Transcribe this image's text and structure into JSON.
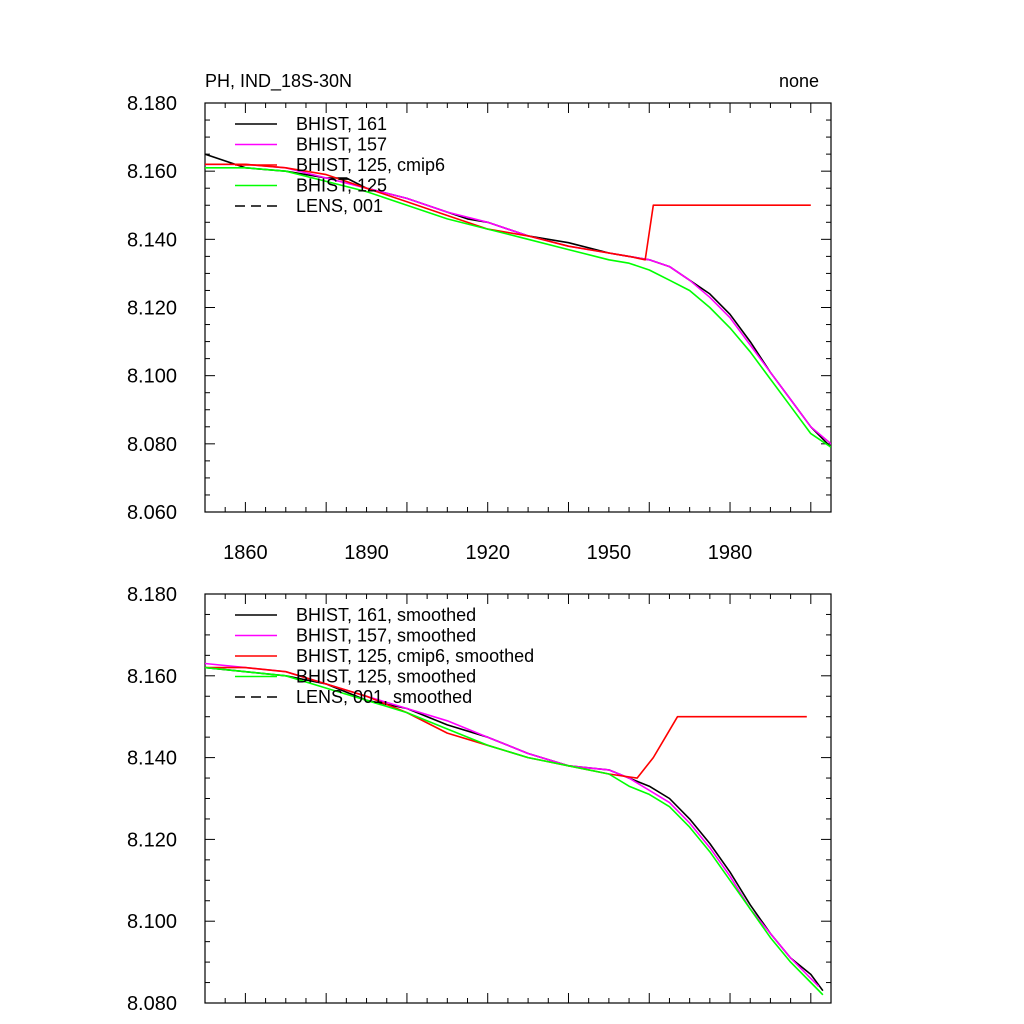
{
  "chart_data": [
    {
      "type": "line",
      "title": "PH, IND_18S-30N",
      "title_right": "none",
      "ylim": [
        8.06,
        8.18
      ],
      "yticks": [
        "8.060",
        "8.080",
        "8.100",
        "8.120",
        "8.140",
        "8.160",
        "8.180"
      ],
      "xlim": [
        1850,
        2005
      ],
      "xticks": [
        "1860",
        "1890",
        "1920",
        "1950",
        "1980"
      ],
      "legend_placement": "top-left",
      "series": [
        {
          "name": "BHIST, 161",
          "color": "#000000",
          "dash": "solid",
          "x": [
            1850,
            1860,
            1870,
            1880,
            1885,
            1890,
            1900,
            1910,
            1915,
            1920,
            1930,
            1940,
            1950,
            1955,
            1960,
            1965,
            1970,
            1975,
            1980,
            1985,
            1990,
            1995,
            2000,
            2005
          ],
          "y": [
            8.165,
            8.161,
            8.16,
            8.158,
            8.158,
            8.155,
            8.152,
            8.148,
            8.146,
            8.145,
            8.141,
            8.139,
            8.136,
            8.135,
            8.134,
            8.132,
            8.128,
            8.124,
            8.118,
            8.11,
            8.101,
            8.093,
            8.085,
            8.079
          ]
        },
        {
          "name": "BHIST, 157",
          "color": "#ff00ff",
          "dash": "solid",
          "x": [
            1850,
            1860,
            1870,
            1880,
            1890,
            1900,
            1910,
            1920,
            1930,
            1940,
            1950,
            1955,
            1960,
            1965,
            1970,
            1975,
            1980,
            1985,
            1990,
            1995,
            2000,
            2005
          ],
          "y": [
            8.162,
            8.162,
            8.161,
            8.158,
            8.155,
            8.152,
            8.148,
            8.145,
            8.141,
            8.138,
            8.136,
            8.135,
            8.134,
            8.132,
            8.128,
            8.123,
            8.117,
            8.109,
            8.101,
            8.093,
            8.085,
            8.08
          ]
        },
        {
          "name": "BHIST, 125, cmip6",
          "color": "#ff0000",
          "dash": "solid",
          "x": [
            1850,
            1860,
            1870,
            1880,
            1890,
            1900,
            1910,
            1920,
            1930,
            1940,
            1950,
            1955,
            1959,
            1961,
            1970,
            1980,
            1990,
            2000
          ],
          "y": [
            8.162,
            8.162,
            8.161,
            8.159,
            8.155,
            8.151,
            8.147,
            8.143,
            8.141,
            8.138,
            8.136,
            8.135,
            8.134,
            8.15,
            8.15,
            8.15,
            8.15,
            8.15
          ]
        },
        {
          "name": "BHIST, 125",
          "color": "#00ff00",
          "dash": "solid",
          "x": [
            1850,
            1860,
            1870,
            1880,
            1890,
            1900,
            1910,
            1920,
            1930,
            1940,
            1950,
            1955,
            1960,
            1965,
            1970,
            1975,
            1980,
            1985,
            1990,
            1995,
            2000,
            2005
          ],
          "y": [
            8.161,
            8.161,
            8.16,
            8.157,
            8.154,
            8.15,
            8.146,
            8.143,
            8.14,
            8.137,
            8.134,
            8.133,
            8.131,
            8.128,
            8.125,
            8.12,
            8.114,
            8.107,
            8.099,
            8.091,
            8.083,
            8.079
          ]
        },
        {
          "name": "LENS, 001",
          "color": "#000000",
          "dash": "dashed",
          "x": [],
          "y": []
        }
      ]
    },
    {
      "type": "line",
      "ylim": [
        8.08,
        8.18
      ],
      "yticks": [
        "8.080",
        "8.100",
        "8.120",
        "8.140",
        "8.160",
        "8.180"
      ],
      "xlim": [
        1850,
        2005
      ],
      "legend_placement": "top-left",
      "series": [
        {
          "name": "BHIST, 161, smoothed",
          "color": "#000000",
          "dash": "solid",
          "x": [
            1850,
            1860,
            1870,
            1880,
            1890,
            1900,
            1910,
            1920,
            1930,
            1940,
            1950,
            1955,
            1960,
            1965,
            1970,
            1975,
            1980,
            1985,
            1990,
            1995,
            2000,
            2003
          ],
          "y": [
            8.162,
            8.161,
            8.16,
            8.158,
            8.154,
            8.152,
            8.148,
            8.145,
            8.141,
            8.138,
            8.137,
            8.135,
            8.133,
            8.13,
            8.125,
            8.119,
            8.112,
            8.104,
            8.097,
            8.091,
            8.087,
            8.083
          ]
        },
        {
          "name": "BHIST, 157, smoothed",
          "color": "#ff00ff",
          "dash": "solid",
          "x": [
            1850,
            1860,
            1870,
            1880,
            1890,
            1900,
            1910,
            1920,
            1930,
            1940,
            1950,
            1955,
            1960,
            1965,
            1970,
            1975,
            1980,
            1985,
            1990,
            1995,
            2000,
            2002
          ],
          "y": [
            8.163,
            8.162,
            8.161,
            8.158,
            8.155,
            8.152,
            8.149,
            8.145,
            8.141,
            8.138,
            8.137,
            8.135,
            8.132,
            8.129,
            8.124,
            8.118,
            8.111,
            8.103,
            8.097,
            8.091,
            8.086,
            8.084
          ]
        },
        {
          "name": "BHIST, 125, cmip6, smoothed",
          "color": "#ff0000",
          "dash": "solid",
          "x": [
            1850,
            1860,
            1870,
            1880,
            1890,
            1900,
            1910,
            1920,
            1930,
            1940,
            1950,
            1957,
            1961,
            1964,
            1967,
            1980,
            1990,
            1999
          ],
          "y": [
            8.162,
            8.162,
            8.161,
            8.158,
            8.155,
            8.151,
            8.146,
            8.143,
            8.14,
            8.138,
            8.136,
            8.135,
            8.14,
            8.145,
            8.15,
            8.15,
            8.15,
            8.15
          ]
        },
        {
          "name": "BHIST, 125, smoothed",
          "color": "#00ff00",
          "dash": "solid",
          "x": [
            1850,
            1860,
            1870,
            1880,
            1890,
            1900,
            1910,
            1920,
            1930,
            1940,
            1950,
            1955,
            1960,
            1965,
            1970,
            1975,
            1980,
            1985,
            1990,
            1995,
            2000,
            2003
          ],
          "y": [
            8.162,
            8.161,
            8.16,
            8.157,
            8.154,
            8.151,
            8.147,
            8.143,
            8.14,
            8.138,
            8.136,
            8.133,
            8.131,
            8.128,
            8.123,
            8.117,
            8.11,
            8.103,
            8.096,
            8.09,
            8.085,
            8.082
          ]
        },
        {
          "name": "LENS, 001, smoothed",
          "color": "#000000",
          "dash": "dashed",
          "x": [],
          "y": []
        }
      ]
    }
  ]
}
